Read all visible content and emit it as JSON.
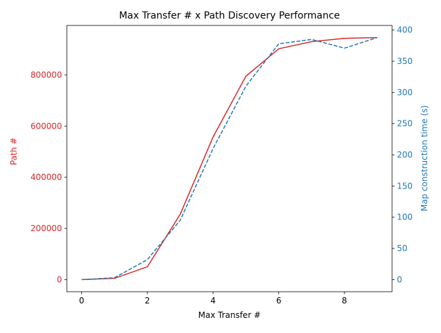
{
  "chart_data": {
    "type": "line",
    "title": "Max Transfer # x Path Discovery Performance",
    "xlabel": "Max Transfer #",
    "ylabel_left": "Path #",
    "ylabel_right": "Map construction time (s)",
    "x": [
      0,
      1,
      2,
      3,
      4,
      5,
      6,
      7,
      8,
      9
    ],
    "xlim": [
      -0.45,
      9.45
    ],
    "xticks": [
      0,
      2,
      4,
      6,
      8
    ],
    "series": [
      {
        "name": "Path #",
        "axis": "left",
        "style": "solid",
        "color": "#d62728",
        "values": [
          0,
          5000,
          50000,
          255000,
          557000,
          795000,
          902000,
          930000,
          943000,
          946000
        ]
      },
      {
        "name": "Map construction time (s)",
        "axis": "right",
        "style": "dashed",
        "color": "#1f77b4",
        "values": [
          0,
          3,
          32,
          95,
          210,
          310,
          378,
          385,
          371,
          388
        ]
      }
    ],
    "ylim_left": [
      -47300,
      993300
    ],
    "yticks_left": [
      0,
      200000,
      400000,
      600000,
      800000
    ],
    "ylim_right": [
      -19.4,
      407.4
    ],
    "yticks_right": [
      0,
      50,
      100,
      150,
      200,
      250,
      300,
      350,
      400
    ],
    "grid": false,
    "legend": "none"
  }
}
